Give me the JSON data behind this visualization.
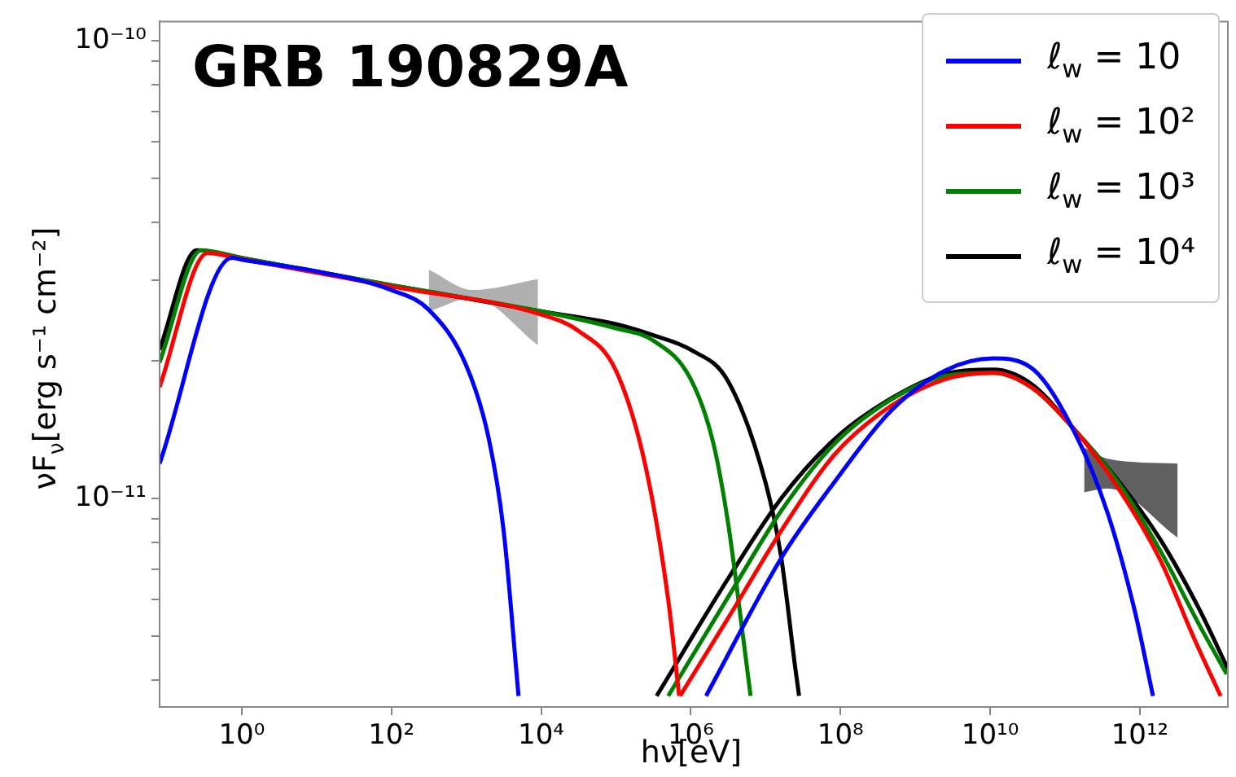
{
  "chart_data": {
    "type": "line",
    "title": "GRB 190829A",
    "xlabel": "hν[eV]",
    "ylabel": "νF$_{ν}$[erg s⁻¹ cm⁻²]",
    "log": "xy",
    "legend": "top right",
    "marker": "none",
    "xlim": [
      0.08,
      15000000000000.0
    ],
    "ylim": [
      3.5e-12,
      1.1e-10
    ],
    "xticks": [
      {
        "value": 1,
        "label": "10⁰"
      },
      {
        "value": 100,
        "label": "10²"
      },
      {
        "value": 10000,
        "label": "10⁴"
      },
      {
        "value": 1000000,
        "label": "10⁶"
      },
      {
        "value": 100000000,
        "label": "10⁸"
      },
      {
        "value": 10000000000,
        "label": "10¹⁰"
      },
      {
        "value": 1000000000000,
        "label": "10¹²"
      }
    ],
    "yticks": [
      {
        "value": 4e-12,
        "label": null
      },
      {
        "value": 5e-12,
        "label": null
      },
      {
        "value": 6e-12,
        "label": null
      },
      {
        "value": 7e-12,
        "label": null
      },
      {
        "value": 8e-12,
        "label": null
      },
      {
        "value": 9e-12,
        "label": null
      },
      {
        "value": 1e-11,
        "label": "10⁻¹¹"
      },
      {
        "value": 2e-11,
        "label": null
      },
      {
        "value": 3e-11,
        "label": null
      },
      {
        "value": 4e-11,
        "label": null
      },
      {
        "value": 5e-11,
        "label": null
      },
      {
        "value": 6e-11,
        "label": null
      },
      {
        "value": 7e-11,
        "label": null
      },
      {
        "value": 8e-11,
        "label": null
      },
      {
        "value": 9e-11,
        "label": null
      },
      {
        "value": 1e-10,
        "label": "10⁻¹⁰"
      }
    ],
    "series": [
      {
        "color": "#b0b0b0",
        "x": [
          316,
          1230,
          9100
        ],
        "values": [
          null,
          null,
          null
        ],
        "lower": [
          2.56e-11,
          2.74e-11,
          2.16e-11
        ],
        "upper": [
          3.16e-11,
          2.85e-11,
          3.01e-11
        ]
      },
      {
        "color": "#606060",
        "x": [
          180000000000.0,
          370000000000.0,
          3200000000000.0
        ],
        "values": [
          null,
          null,
          null
        ],
        "lower": [
          1.03e-11,
          1.05e-11,
          8.2e-12
        ],
        "upper": [
          1.29e-11,
          1.22e-11,
          1.19e-11
        ]
      },
      {
        "name": "ℓ$_{w}$ = 10",
        "color": "#0000ff",
        "x": [
          0.08,
          0.74,
          1,
          10,
          100,
          316,
          1000,
          2000,
          3160,
          5000,
          100000,
          1600000,
          17000000,
          85000000,
          470000000,
          2500000000,
          11000000000,
          35000000000,
          135000000000,
          370000000000,
          850000000000,
          1500000000000
        ],
        "values": [
          1.19e-11,
          3.35e-11,
          3.32e-11,
          3.13e-11,
          2.85e-11,
          2.58e-11,
          1.95e-11,
          1.35e-11,
          8.5e-12,
          3.7e-12,
          null,
          3.7e-12,
          7.5e-12,
          1.09e-11,
          1.55e-11,
          1.9e-11,
          2.02e-11,
          1.93e-11,
          1.39e-11,
          9.3e-12,
          5.7e-12,
          3.7e-12
        ]
      },
      {
        "name": "ℓ$_{w}$ = 10²",
        "color": "#ff0000",
        "x": [
          0.08,
          0.35,
          1,
          100,
          10000,
          31600,
          100000,
          250000,
          500000,
          700000,
          710000,
          720000,
          3700000,
          17000000,
          85000000,
          470000000,
          2500000000,
          11000000000,
          35000000000,
          135000000000,
          520000000000,
          1900000000000,
          5200000000000,
          12000000000000
        ],
        "values": [
          1.75e-11,
          3.43e-11,
          3.33e-11,
          2.9e-11,
          2.52e-11,
          2.32e-11,
          1.9e-11,
          1.17e-11,
          6e-12,
          3.7e-12,
          null,
          3.7e-12,
          5.71e-12,
          8.6e-12,
          1.25e-11,
          1.59e-11,
          1.82e-11,
          1.88e-11,
          1.75e-11,
          1.41e-11,
          1.05e-11,
          7.3e-12,
          4.98e-12,
          3.7e-12
        ]
      },
      {
        "name": "ℓ$_{w}$ = 10³",
        "color": "#008000",
        "x": [
          0.08,
          0.29,
          1,
          100,
          10000,
          100000,
          316000,
          1000000,
          2000000,
          3160000,
          5000000,
          6300000,
          1000000,
          500000,
          3700000,
          17000000,
          85000000,
          470000000,
          2500000000,
          11000000000,
          35000000000,
          135000000000,
          520000000000,
          1900000000000,
          6300000000000,
          14500000000000
        ],
        "values": [
          1.98e-11,
          3.48e-11,
          3.35e-11,
          2.92e-11,
          2.56e-11,
          2.35e-11,
          2.21e-11,
          1.82e-11,
          1.32e-11,
          8.8e-12,
          4.98e-12,
          3.7e-12,
          null,
          3.7e-12,
          6.35e-12,
          9.5e-12,
          1.32e-11,
          1.64e-11,
          1.85e-11,
          1.88e-11,
          1.75e-11,
          1.41e-11,
          1.08e-11,
          7.65e-12,
          5.27e-12,
          4.13e-12
        ]
      },
      {
        "name": "ℓ$_{w}$ = 10⁴",
        "color": "#000000",
        "x": [
          0.08,
          0.25,
          1,
          100,
          10000,
          100000,
          316000,
          1000000,
          3160000,
          10000000,
          16000000,
          25000000,
          28000000,
          1000000,
          350000,
          3200000,
          17000000,
          85000000,
          470000000,
          2500000000,
          11000000000,
          35000000000,
          135000000000,
          520000000000,
          1900000000000,
          6300000000000,
          15000000000000
        ],
        "values": [
          2.11e-11,
          3.48e-11,
          3.35e-11,
          2.92e-11,
          2.56e-11,
          2.4e-11,
          2.27e-11,
          2.11e-11,
          1.8e-11,
          1.08e-11,
          7.5e-12,
          4.24e-12,
          3.7e-12,
          null,
          3.7e-12,
          6.7e-12,
          1.01e-11,
          1.35e-11,
          1.65e-11,
          1.87e-11,
          1.91e-11,
          1.78e-11,
          1.41e-11,
          1.09e-11,
          8.1e-12,
          5.7e-12,
          4.24e-12
        ]
      }
    ]
  }
}
